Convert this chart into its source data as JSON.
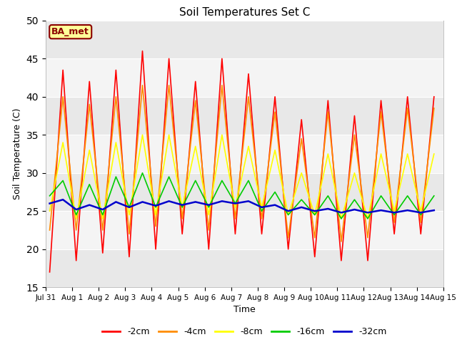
{
  "title": "Soil Temperatures Set C",
  "xlabel": "Time",
  "ylabel": "Soil Temperature (C)",
  "ylim": [
    15,
    50
  ],
  "xlim": [
    0,
    15
  ],
  "xtick_positions": [
    0,
    1,
    2,
    3,
    4,
    5,
    6,
    7,
    8,
    9,
    10,
    11,
    12,
    13,
    14,
    15
  ],
  "xtick_labels": [
    "Jul 31",
    "Aug 1",
    "Aug 2",
    "Aug 3",
    "Aug 4",
    "Aug 5",
    "Aug 6",
    "Aug 7",
    "Aug 8",
    "Aug 9",
    "Aug 10",
    "Aug 11",
    "Aug 12",
    "Aug 13",
    "Aug 14",
    "Aug 15"
  ],
  "series_labels": [
    "-2cm",
    "-4cm",
    "-8cm",
    "-16cm",
    "-32cm"
  ],
  "series_colors": [
    "#FF0000",
    "#FF8C00",
    "#FFFF00",
    "#00CC00",
    "#0000CC"
  ],
  "series_linewidths": [
    1.2,
    1.2,
    1.2,
    1.2,
    1.8
  ],
  "annotation_text": "BA_met",
  "annotation_bg": "#FFFF99",
  "annotation_border": "#8B0000",
  "fig_facecolor": "#FFFFFF",
  "plot_facecolor": "#FFFFFF",
  "band_colors": [
    "#E8E8E8",
    "#F4F4F4"
  ],
  "ytick_bands": [
    15,
    20,
    25,
    30,
    35,
    40,
    45,
    50
  ],
  "cm2_data": [
    17.0,
    43.5,
    18.5,
    42.0,
    19.5,
    43.5,
    19.0,
    46.0,
    20.0,
    45.0,
    22.0,
    42.0,
    20.0,
    45.0,
    22.0,
    43.0,
    22.0,
    40.0,
    20.0,
    37.0,
    19.0,
    39.5,
    18.5,
    37.5,
    18.5,
    39.5,
    22.0,
    40.0,
    22.0,
    40.0
  ],
  "cm4_data": [
    22.5,
    40.0,
    22.5,
    39.0,
    22.5,
    40.0,
    22.0,
    41.5,
    23.0,
    41.5,
    24.0,
    39.5,
    22.5,
    41.5,
    24.0,
    40.0,
    24.0,
    38.0,
    21.5,
    34.5,
    21.5,
    38.0,
    21.0,
    35.0,
    21.5,
    38.0,
    23.5,
    38.5,
    23.5,
    38.5
  ],
  "cm8_data": [
    25.0,
    34.0,
    24.0,
    33.0,
    24.0,
    34.0,
    24.5,
    35.0,
    24.5,
    35.0,
    25.5,
    33.5,
    24.5,
    35.0,
    25.5,
    33.5,
    25.5,
    33.0,
    24.5,
    30.0,
    24.5,
    32.5,
    24.0,
    30.0,
    24.0,
    32.5,
    25.0,
    32.5,
    25.0,
    32.5
  ],
  "cm16_data": [
    27.0,
    29.0,
    24.5,
    28.5,
    24.5,
    29.5,
    25.5,
    30.0,
    25.5,
    29.5,
    25.5,
    29.0,
    25.5,
    29.0,
    26.0,
    29.0,
    25.0,
    27.5,
    24.5,
    26.5,
    24.5,
    27.0,
    24.0,
    26.5,
    24.0,
    27.0,
    24.5,
    27.0,
    24.5,
    27.0
  ],
  "cm32_data": [
    26.0,
    26.5,
    25.2,
    25.8,
    25.2,
    26.2,
    25.5,
    26.2,
    25.7,
    26.3,
    25.8,
    26.2,
    25.8,
    26.3,
    26.0,
    26.3,
    25.5,
    25.8,
    25.0,
    25.5,
    25.0,
    25.3,
    24.8,
    25.2,
    24.8,
    25.1,
    24.8,
    25.1,
    24.8,
    25.1
  ]
}
